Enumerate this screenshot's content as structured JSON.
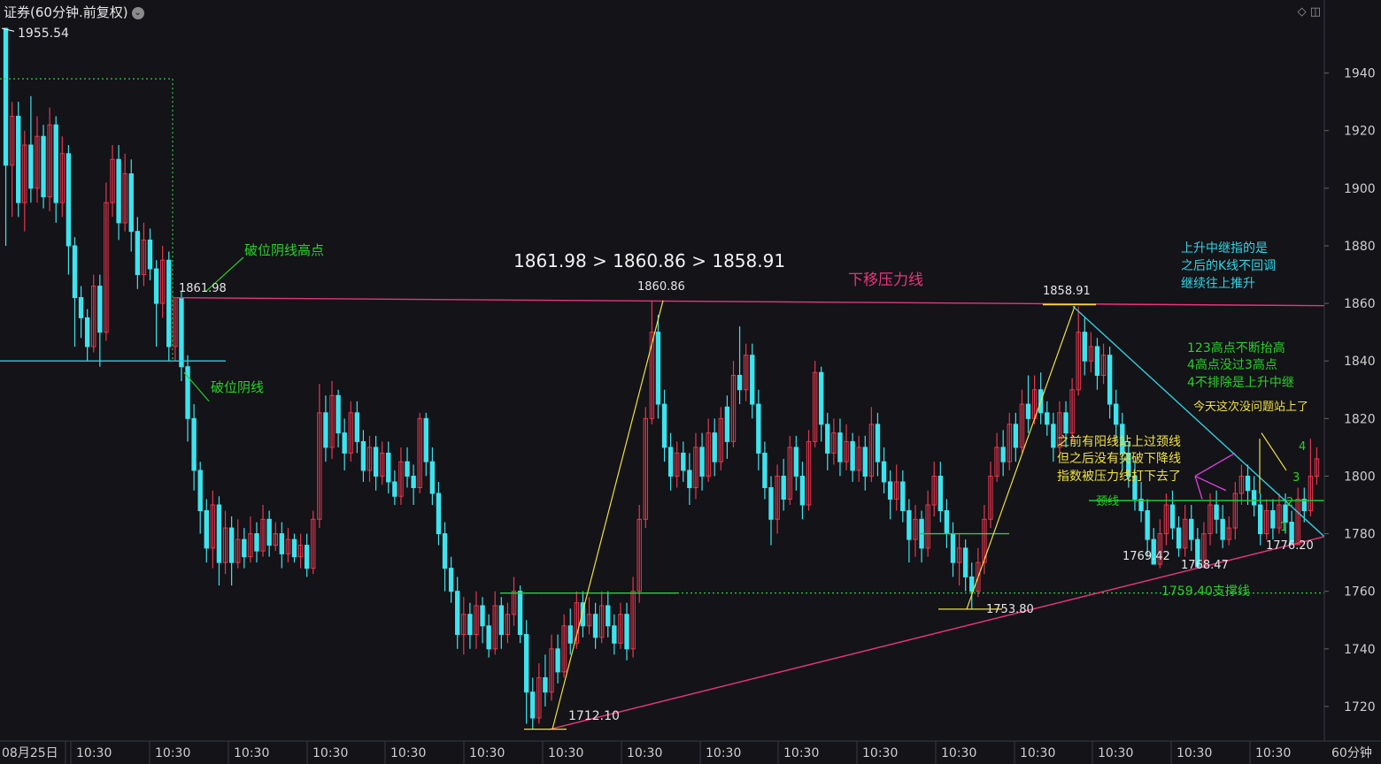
{
  "header": {
    "title": "证券(60分钟.前复权)",
    "dropdown_icon": "chevron-down-icon",
    "right_icons": [
      "diamond-icon",
      "panel-toggle-icon"
    ]
  },
  "colors": {
    "background": "#131318",
    "up": "#e8364d",
    "down": "#3de4ee",
    "grid": "#2a2a33",
    "resistance": "#e8357a",
    "support_green": "#2ecc40",
    "neck_green": "#20c83a",
    "yellow": "#f0e040",
    "cyan": "#2ecfe0",
    "magenta": "#e040e0",
    "text_green": "#28d228",
    "text_cyan": "#2ed6e6",
    "text_yellow": "#f0e040",
    "axis_text": "#cfcfcf"
  },
  "chart_data": {
    "type": "candlestick",
    "ylim": [
      1708,
      1958
    ],
    "y_ticks": [
      1720,
      1740,
      1760,
      1780,
      1800,
      1820,
      1840,
      1860,
      1880,
      1900,
      1920,
      1940
    ],
    "x_labels": [
      "08月25日",
      "10:30",
      "10:30",
      "10:30",
      "10:30",
      "10:30",
      "10:30",
      "10:30",
      "10:30",
      "10:30",
      "10:30",
      "10:30",
      "10:30",
      "10:30",
      "10:30",
      "10:30",
      "10:30"
    ],
    "x_axis_unit": "60分钟",
    "candles": [
      [
        1955.54,
        1908,
        1955.54,
        1880
      ],
      [
        1908,
        1925,
        1930,
        1890
      ],
      [
        1925,
        1895,
        1930,
        1890
      ],
      [
        1895,
        1915,
        1920,
        1885
      ],
      [
        1915,
        1900,
        1932,
        1895
      ],
      [
        1900,
        1918,
        1925,
        1895
      ],
      [
        1918,
        1897,
        1922,
        1893
      ],
      [
        1897,
        1922,
        1928,
        1892
      ],
      [
        1922,
        1895,
        1925,
        1888
      ],
      [
        1895,
        1912,
        1918,
        1890
      ],
      [
        1912,
        1880,
        1915,
        1870
      ],
      [
        1880,
        1862,
        1883,
        1845
      ],
      [
        1862,
        1855,
        1866,
        1848
      ],
      [
        1855,
        1845,
        1858,
        1840
      ],
      [
        1845,
        1866,
        1870,
        1843
      ],
      [
        1866,
        1850,
        1870,
        1838
      ],
      [
        1850,
        1895,
        1902,
        1847
      ],
      [
        1895,
        1910,
        1915,
        1890
      ],
      [
        1910,
        1888,
        1915,
        1882
      ],
      [
        1888,
        1905,
        1912,
        1885
      ],
      [
        1905,
        1885,
        1910,
        1878
      ],
      [
        1885,
        1870,
        1890,
        1865
      ],
      [
        1870,
        1882,
        1888,
        1866
      ],
      [
        1882,
        1872,
        1886,
        1868
      ],
      [
        1872,
        1860,
        1875,
        1845
      ],
      [
        1860,
        1875,
        1880,
        1855
      ],
      [
        1875,
        1845,
        1878,
        1840
      ],
      [
        1845,
        1862,
        1862,
        1840
      ],
      [
        1862,
        1838,
        1864,
        1833
      ],
      [
        1838,
        1820,
        1842,
        1812
      ],
      [
        1820,
        1802,
        1825,
        1795
      ],
      [
        1802,
        1788,
        1805,
        1780
      ],
      [
        1788,
        1775,
        1792,
        1770
      ],
      [
        1775,
        1790,
        1795,
        1768
      ],
      [
        1790,
        1770,
        1793,
        1762
      ],
      [
        1770,
        1782,
        1788,
        1766
      ],
      [
        1782,
        1770,
        1786,
        1762
      ],
      [
        1770,
        1778,
        1785,
        1768
      ],
      [
        1778,
        1772,
        1782,
        1768
      ],
      [
        1772,
        1780,
        1786,
        1770
      ],
      [
        1780,
        1774,
        1784,
        1770
      ],
      [
        1774,
        1785,
        1790,
        1772
      ],
      [
        1785,
        1776,
        1788,
        1772
      ],
      [
        1776,
        1780,
        1784,
        1774
      ],
      [
        1780,
        1773,
        1784,
        1768
      ],
      [
        1773,
        1778,
        1782,
        1770
      ],
      [
        1778,
        1772,
        1780,
        1770
      ],
      [
        1772,
        1776,
        1780,
        1768
      ],
      [
        1776,
        1768,
        1780,
        1765
      ],
      [
        1768,
        1785,
        1788,
        1766
      ],
      [
        1785,
        1822,
        1832,
        1782
      ],
      [
        1822,
        1810,
        1828,
        1805
      ],
      [
        1810,
        1828,
        1833,
        1806
      ],
      [
        1828,
        1815,
        1830,
        1810
      ],
      [
        1815,
        1808,
        1820,
        1802
      ],
      [
        1808,
        1822,
        1826,
        1805
      ],
      [
        1822,
        1812,
        1826,
        1808
      ],
      [
        1812,
        1802,
        1816,
        1798
      ],
      [
        1802,
        1810,
        1814,
        1798
      ],
      [
        1810,
        1800,
        1814,
        1795
      ],
      [
        1800,
        1808,
        1812,
        1797
      ],
      [
        1808,
        1798,
        1812,
        1794
      ],
      [
        1798,
        1793,
        1802,
        1790
      ],
      [
        1793,
        1805,
        1810,
        1790
      ],
      [
        1805,
        1800,
        1810,
        1796
      ],
      [
        1800,
        1796,
        1804,
        1790
      ],
      [
        1796,
        1820,
        1822,
        1794
      ],
      [
        1820,
        1805,
        1822,
        1800
      ],
      [
        1805,
        1794,
        1810,
        1790
      ],
      [
        1794,
        1780,
        1798,
        1776
      ],
      [
        1780,
        1768,
        1784,
        1760
      ],
      [
        1768,
        1760,
        1772,
        1756
      ],
      [
        1760,
        1745,
        1765,
        1740
      ],
      [
        1745,
        1752,
        1758,
        1738
      ],
      [
        1752,
        1745,
        1756,
        1740
      ],
      [
        1745,
        1755,
        1760,
        1740
      ],
      [
        1755,
        1748,
        1758,
        1742
      ],
      [
        1748,
        1740,
        1752,
        1737
      ],
      [
        1740,
        1755,
        1760,
        1738
      ],
      [
        1755,
        1745,
        1758,
        1740
      ],
      [
        1745,
        1752,
        1756,
        1742
      ],
      [
        1752,
        1760,
        1765,
        1748
      ],
      [
        1760,
        1745,
        1762,
        1742
      ],
      [
        1745,
        1725,
        1750,
        1714
      ],
      [
        1725,
        1716,
        1730,
        1712.1
      ],
      [
        1716,
        1730,
        1735,
        1714
      ],
      [
        1730,
        1725,
        1738,
        1720
      ],
      [
        1725,
        1740,
        1745,
        1722
      ],
      [
        1740,
        1732,
        1745,
        1728
      ],
      [
        1732,
        1748,
        1752,
        1730
      ],
      [
        1748,
        1742,
        1754,
        1738
      ],
      [
        1742,
        1756,
        1760,
        1740
      ],
      [
        1756,
        1748,
        1760,
        1744
      ],
      [
        1748,
        1752,
        1758,
        1745
      ],
      [
        1752,
        1744,
        1756,
        1740
      ],
      [
        1744,
        1755,
        1760,
        1742
      ],
      [
        1755,
        1748,
        1760,
        1744
      ],
      [
        1748,
        1742,
        1752,
        1738
      ],
      [
        1742,
        1752,
        1756,
        1740
      ],
      [
        1752,
        1740,
        1756,
        1736
      ],
      [
        1740,
        1760,
        1765,
        1737
      ],
      [
        1760,
        1785,
        1790,
        1756
      ],
      [
        1785,
        1820,
        1824,
        1782
      ],
      [
        1820,
        1850,
        1860.86,
        1818
      ],
      [
        1850,
        1825,
        1856,
        1820
      ],
      [
        1825,
        1810,
        1830,
        1805
      ],
      [
        1810,
        1800,
        1815,
        1795
      ],
      [
        1800,
        1808,
        1812,
        1796
      ],
      [
        1808,
        1802,
        1812,
        1798
      ],
      [
        1802,
        1796,
        1808,
        1790
      ],
      [
        1796,
        1810,
        1815,
        1792
      ],
      [
        1810,
        1800,
        1815,
        1795
      ],
      [
        1800,
        1815,
        1820,
        1798
      ],
      [
        1815,
        1805,
        1820,
        1800
      ],
      [
        1805,
        1820,
        1824,
        1802
      ],
      [
        1824,
        1812,
        1828,
        1806
      ],
      [
        1812,
        1835,
        1840,
        1810
      ],
      [
        1835,
        1830,
        1852,
        1825
      ],
      [
        1830,
        1842,
        1846,
        1826
      ],
      [
        1842,
        1825,
        1846,
        1820
      ],
      [
        1825,
        1808,
        1830,
        1802
      ],
      [
        1808,
        1796,
        1812,
        1792
      ],
      [
        1796,
        1785,
        1800,
        1776
      ],
      [
        1785,
        1800,
        1804,
        1780
      ],
      [
        1800,
        1792,
        1806,
        1788
      ],
      [
        1792,
        1810,
        1814,
        1790
      ],
      [
        1810,
        1800,
        1814,
        1795
      ],
      [
        1800,
        1790,
        1805,
        1785
      ],
      [
        1790,
        1812,
        1816,
        1788
      ],
      [
        1812,
        1836,
        1840,
        1810
      ],
      [
        1836,
        1818,
        1838,
        1812
      ],
      [
        1818,
        1808,
        1822,
        1802
      ],
      [
        1808,
        1815,
        1820,
        1804
      ],
      [
        1815,
        1805,
        1820,
        1800
      ],
      [
        1805,
        1812,
        1818,
        1802
      ],
      [
        1812,
        1802,
        1815,
        1798
      ],
      [
        1802,
        1810,
        1814,
        1798
      ],
      [
        1810,
        1800,
        1814,
        1795
      ],
      [
        1800,
        1818,
        1824,
        1798
      ],
      [
        1818,
        1805,
        1822,
        1800
      ],
      [
        1805,
        1798,
        1810,
        1794
      ],
      [
        1798,
        1792,
        1802,
        1785
      ],
      [
        1792,
        1798,
        1804,
        1788
      ],
      [
        1798,
        1788,
        1802,
        1784
      ],
      [
        1788,
        1778,
        1792,
        1770
      ],
      [
        1778,
        1785,
        1790,
        1772
      ],
      [
        1785,
        1775,
        1788,
        1770
      ],
      [
        1775,
        1790,
        1795,
        1772
      ],
      [
        1790,
        1800,
        1805,
        1786
      ],
      [
        1800,
        1788,
        1805,
        1784
      ],
      [
        1788,
        1780,
        1792,
        1775
      ],
      [
        1780,
        1770,
        1784,
        1765
      ],
      [
        1770,
        1775,
        1780,
        1762
      ],
      [
        1775,
        1765,
        1778,
        1760
      ],
      [
        1765,
        1760,
        1770,
        1753.8
      ],
      [
        1760,
        1770,
        1775,
        1758
      ],
      [
        1770,
        1785,
        1790,
        1766
      ],
      [
        1785,
        1800,
        1805,
        1782
      ],
      [
        1800,
        1810,
        1815,
        1798
      ],
      [
        1810,
        1805,
        1816,
        1800
      ],
      [
        1805,
        1818,
        1822,
        1802
      ],
      [
        1818,
        1810,
        1822,
        1805
      ],
      [
        1810,
        1825,
        1830,
        1808
      ],
      [
        1825,
        1820,
        1835,
        1815
      ],
      [
        1820,
        1830,
        1835,
        1818
      ],
      [
        1830,
        1822,
        1836,
        1818
      ],
      [
        1822,
        1818,
        1826,
        1814
      ],
      [
        1818,
        1810,
        1822,
        1805
      ],
      [
        1810,
        1822,
        1826,
        1808
      ],
      [
        1822,
        1815,
        1826,
        1810
      ],
      [
        1815,
        1830,
        1834,
        1812
      ],
      [
        1830,
        1850,
        1858.91,
        1828
      ],
      [
        1850,
        1840,
        1855,
        1835
      ],
      [
        1840,
        1845,
        1850,
        1836
      ],
      [
        1845,
        1835,
        1848,
        1830
      ],
      [
        1835,
        1842,
        1846,
        1832
      ],
      [
        1842,
        1825,
        1845,
        1820
      ],
      [
        1825,
        1818,
        1830,
        1812
      ],
      [
        1818,
        1808,
        1822,
        1802
      ],
      [
        1808,
        1800,
        1812,
        1796
      ],
      [
        1800,
        1792,
        1805,
        1788
      ],
      [
        1792,
        1788,
        1798,
        1784
      ],
      [
        1788,
        1778,
        1792,
        1772
      ],
      [
        1778,
        1769.42,
        1782,
        1769.42
      ],
      [
        1769.42,
        1780,
        1785,
        1768
      ],
      [
        1780,
        1790,
        1794,
        1776
      ],
      [
        1790,
        1782,
        1795,
        1778
      ],
      [
        1782,
        1775,
        1786,
        1772
      ],
      [
        1775,
        1785,
        1790,
        1772
      ],
      [
        1785,
        1778,
        1790,
        1774
      ],
      [
        1778,
        1768.47,
        1782,
        1768.47
      ],
      [
        1768.47,
        1780,
        1784,
        1768
      ],
      [
        1780,
        1790,
        1794,
        1776
      ],
      [
        1790,
        1785,
        1795,
        1780
      ],
      [
        1785,
        1778,
        1790,
        1775
      ],
      [
        1778,
        1782,
        1786,
        1776
      ],
      [
        1782,
        1794,
        1798,
        1778
      ],
      [
        1794,
        1800,
        1804,
        1790
      ],
      [
        1800,
        1795,
        1804,
        1790
      ],
      [
        1795,
        1790,
        1800,
        1786
      ],
      [
        1790,
        1780,
        1794,
        1776
      ],
      [
        1780,
        1788,
        1792,
        1778
      ],
      [
        1788,
        1782,
        1792,
        1778
      ],
      [
        1782,
        1790,
        1794,
        1780
      ],
      [
        1790,
        1784,
        1794,
        1780
      ],
      [
        1784,
        1776.2,
        1788,
        1776.2
      ],
      [
        1776.2,
        1792,
        1796,
        1776
      ],
      [
        1792,
        1788,
        1796,
        1784
      ],
      [
        1788,
        1800,
        1813,
        1786
      ],
      [
        1800,
        1806,
        1810,
        1797
      ]
    ]
  },
  "labels": {
    "high_start": "1955.54",
    "high_a": "1861.98",
    "high_b": "1860.86",
    "high_c": "1858.91",
    "low_a": "1712.10",
    "low_b": "1753.80",
    "low_c": "1769.42",
    "low_d": "1768.47",
    "low_e": "1776.20",
    "compare": "1861.98 > 1860.86 > 1858.91",
    "resistance": "下移压力线",
    "breakdown_high": "破位阴线高点",
    "breakdown": "破位阴线",
    "support": "1759.40支撑线",
    "neckline": "颈线",
    "relay_1": "上升中继指的是",
    "relay_2": "之后的K线不回调",
    "relay_3": "继续往上推升",
    "high123_1": "123高点不断抬高",
    "high123_2": "4高点没过3高点",
    "high123_3": "4不排除是上升中继",
    "today": "今天这次没问题站上了",
    "before_1": "之前有阳线站上过颈线",
    "before_2": "但之后没有突破下降线",
    "before_3": "指数被压力线打下去了",
    "n1": "1",
    "n2": "2",
    "n3": "3",
    "n4": "4"
  }
}
